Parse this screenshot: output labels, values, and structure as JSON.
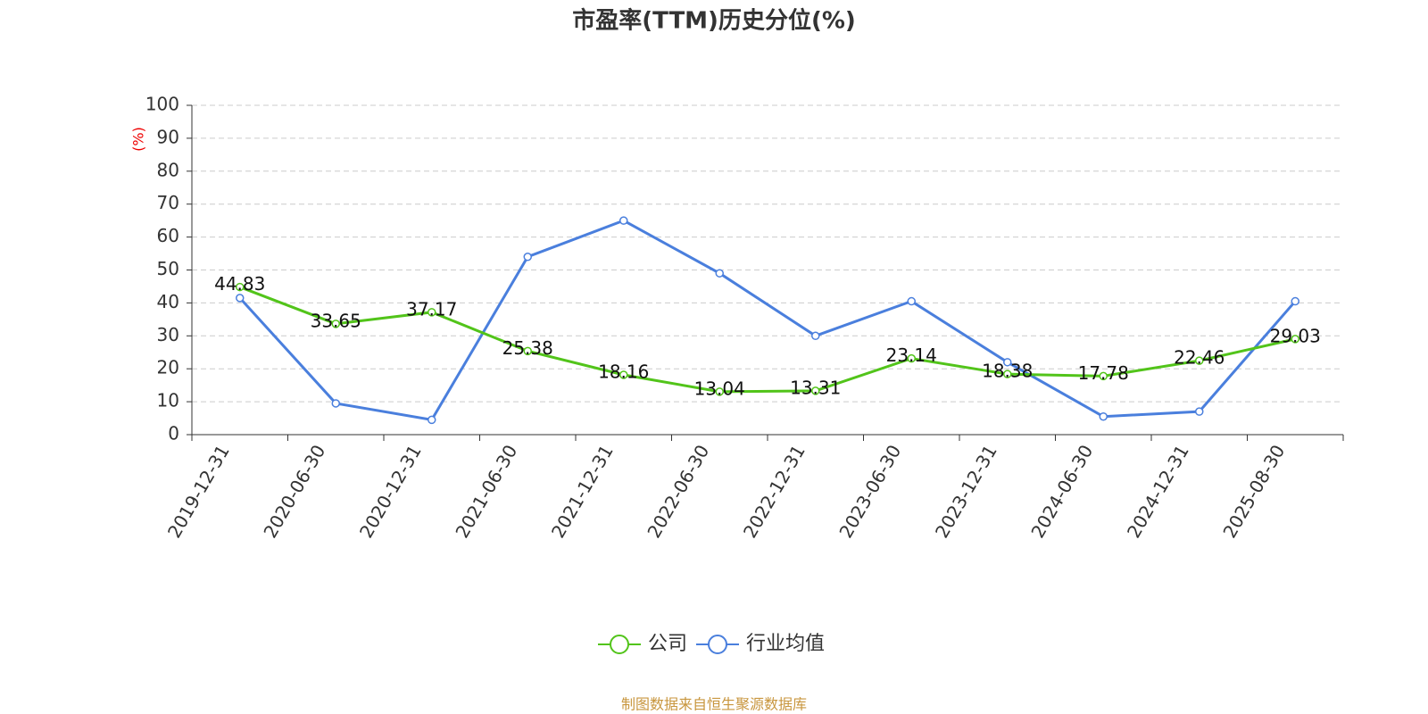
{
  "chart_data": {
    "type": "line",
    "title": "市盈率(TTM)历史分位(%)",
    "y_label": "(%)",
    "categories": [
      "2019-12-31",
      "2020-06-30",
      "2020-12-31",
      "2021-06-30",
      "2021-12-31",
      "2022-06-30",
      "2022-12-31",
      "2023-06-30",
      "2023-12-31",
      "2024-06-30",
      "2024-12-31",
      "2025-08-30"
    ],
    "series": [
      {
        "name": "公司",
        "color": "#52c41a",
        "values": [
          44.83,
          33.65,
          37.17,
          25.38,
          18.16,
          13.04,
          13.31,
          23.14,
          18.38,
          17.78,
          22.46,
          29.03
        ]
      },
      {
        "name": "行业均值",
        "color": "#4a7fdd",
        "values": [
          41.5,
          9.5,
          4.5,
          54,
          65,
          49,
          30,
          40.5,
          22,
          5.5,
          7,
          40.5
        ]
      }
    ],
    "ylim": [
      0,
      100
    ],
    "yticks": [
      0,
      10,
      20,
      30,
      40,
      50,
      60,
      70,
      80,
      90,
      100
    ],
    "grid": true,
    "source": "制图数据来自恒生聚源数据库"
  }
}
